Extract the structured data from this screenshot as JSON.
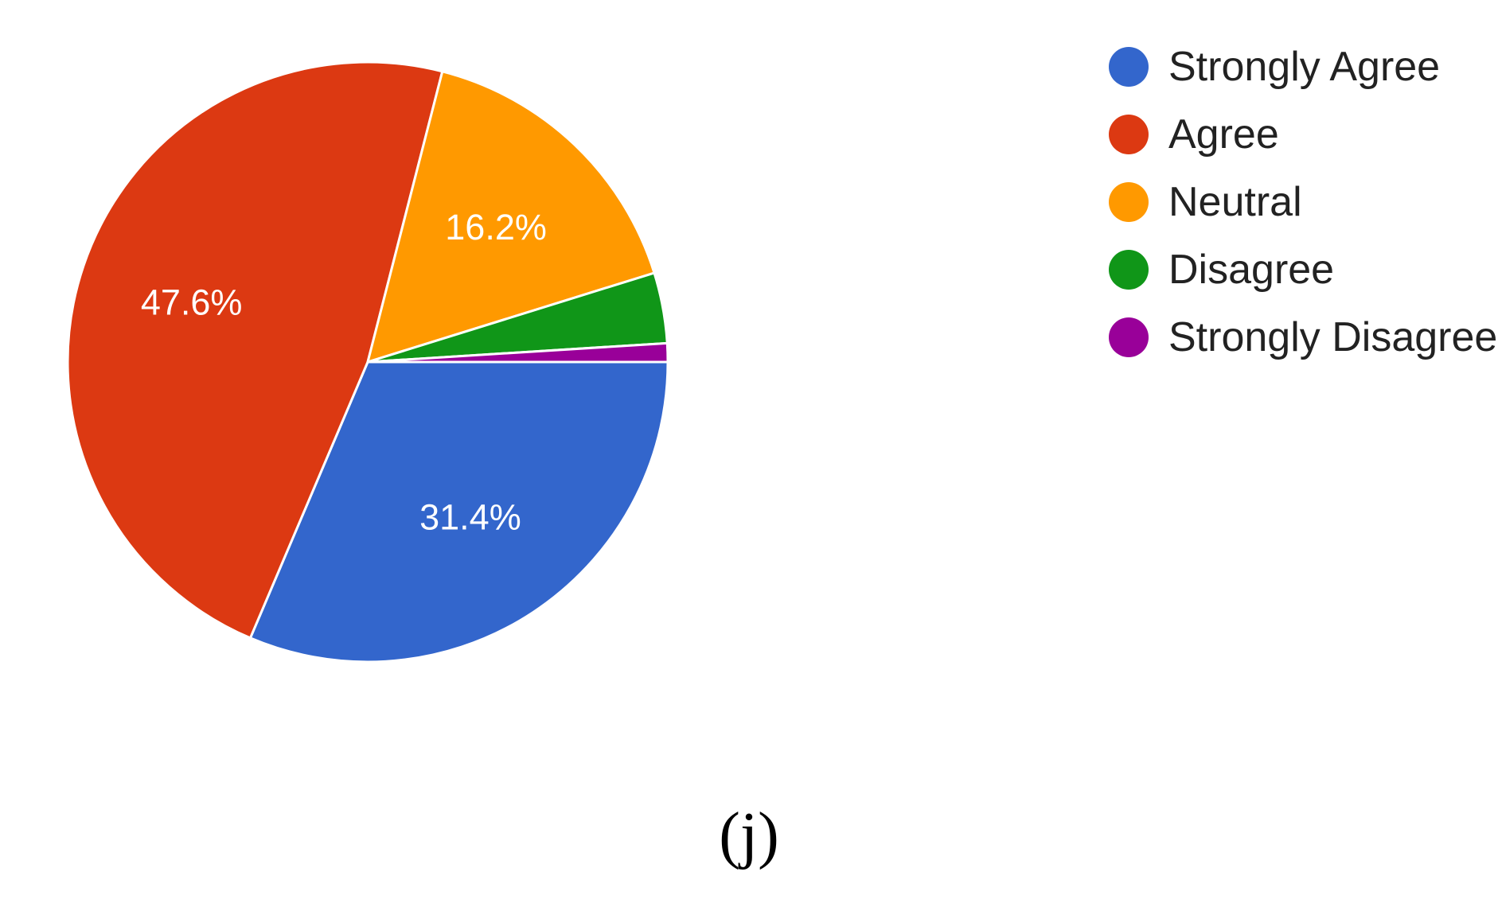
{
  "chart_data": {
    "type": "pie",
    "categories": [
      "Strongly Agree",
      "Agree",
      "Neutral",
      "Disagree",
      "Strongly Disagree"
    ],
    "values": [
      31.4,
      47.6,
      16.2,
      3.8,
      1.0
    ],
    "value_labels": [
      "31.4%",
      "47.6%",
      "16.2%",
      "",
      ""
    ],
    "colors": [
      "#3366cc",
      "#dc3912",
      "#ff9900",
      "#109618",
      "#990099"
    ],
    "legend_position": "right"
  },
  "caption": "(j)"
}
